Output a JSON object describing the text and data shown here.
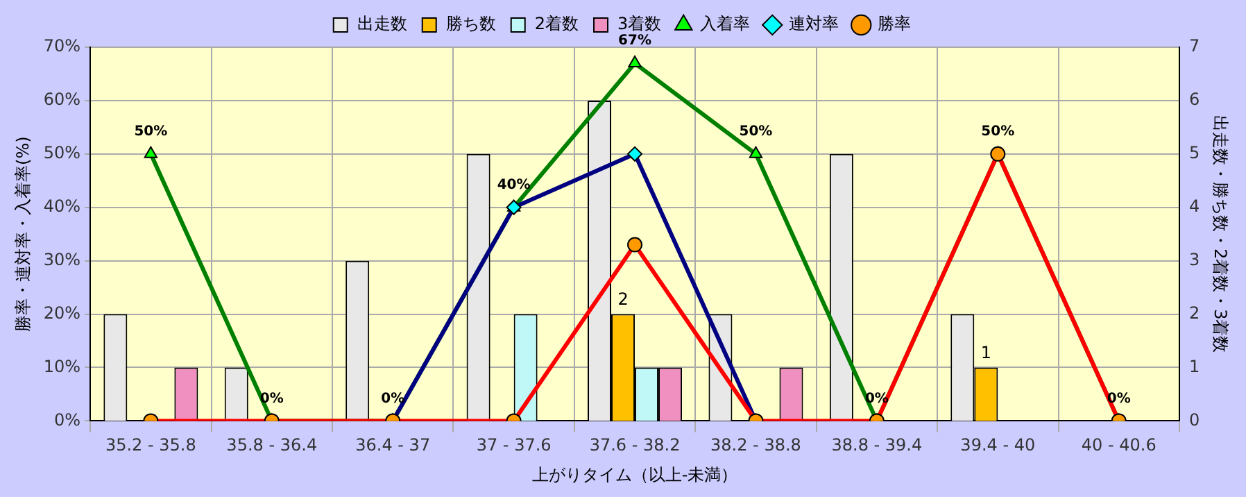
{
  "chart_data": {
    "type": "bar",
    "xlabel": "上がりタイム（以上-未満）",
    "ylabel": "勝率・連対率・入着率(%)",
    "y2label": "出走数・勝ち数・2着数・3着数",
    "categories": [
      "35.2 - 35.8",
      "35.8 - 36.4",
      "36.4 - 37",
      "37 - 37.6",
      "37.6 - 38.2",
      "38.2 - 38.8",
      "38.8 - 39.4",
      "39.4 - 40",
      "40 - 40.6"
    ],
    "series": [
      {
        "name": "出走数",
        "type": "bar",
        "axis": "y2",
        "color": "#e8e8e8",
        "values": [
          2,
          1,
          3,
          5,
          6,
          2,
          5,
          2,
          0
        ]
      },
      {
        "name": "勝ち数",
        "type": "bar",
        "axis": "y2",
        "color": "#ffc000",
        "values": [
          0,
          0,
          0,
          0,
          2,
          0,
          0,
          1,
          0
        ],
        "value_labels": [
          null,
          null,
          null,
          null,
          "2",
          null,
          null,
          "1",
          null
        ]
      },
      {
        "name": "2着数",
        "type": "bar",
        "axis": "y2",
        "color": "#c0f8f8",
        "values": [
          0,
          0,
          0,
          2,
          1,
          0,
          0,
          0,
          0
        ]
      },
      {
        "name": "3着数",
        "type": "bar",
        "axis": "y2",
        "color": "#f090c0",
        "values": [
          1,
          0,
          0,
          0,
          1,
          1,
          0,
          0,
          0
        ]
      },
      {
        "name": "入着率",
        "type": "line",
        "color": "#008000",
        "marker": "triangle",
        "values": [
          50,
          0,
          0,
          40,
          67,
          50,
          0,
          50,
          0
        ],
        "value_labels": [
          "50%",
          "0%",
          "0%",
          "40%",
          "67%",
          "50%",
          "0%",
          "50%",
          "0%"
        ]
      },
      {
        "name": "連対率",
        "type": "line",
        "color": "#000080",
        "marker": "diamond",
        "values": [
          null,
          null,
          0,
          40,
          50,
          0,
          null,
          null,
          null
        ]
      },
      {
        "name": "勝率",
        "type": "line",
        "color": "#ff0000",
        "marker": "circle",
        "values": [
          0,
          0,
          0,
          0,
          33,
          0,
          0,
          50,
          0
        ]
      }
    ],
    "ylim": [
      0,
      70
    ],
    "yticks": [
      {
        "value": 0,
        "label": "0%"
      },
      {
        "value": 10,
        "label": "10%"
      },
      {
        "value": 20,
        "label": "20%"
      },
      {
        "value": 30,
        "label": "30%"
      },
      {
        "value": 40,
        "label": "40%"
      },
      {
        "value": 50,
        "label": "50%"
      },
      {
        "value": 60,
        "label": "60%"
      },
      {
        "value": 70,
        "label": "70%"
      }
    ],
    "y2lim": [
      0,
      7
    ],
    "y2ticks": [
      0,
      1,
      2,
      3,
      4,
      5,
      6,
      7
    ],
    "grid": true,
    "legend": "top",
    "line_style": "solid"
  }
}
